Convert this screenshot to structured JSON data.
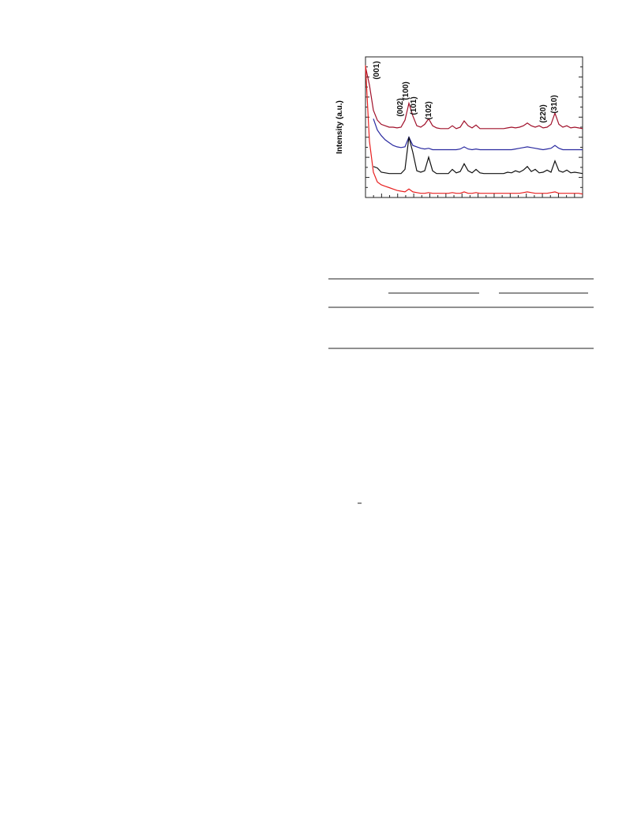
{
  "chart_data": {
    "type": "line",
    "y_label": "Intensity (a.u.)",
    "annotations": [
      "(001)",
      "(002)",
      "(100)",
      "(101)",
      "(102)",
      "(220)",
      "(310)"
    ],
    "categories": [
      null,
      null,
      null,
      null,
      null,
      null,
      null,
      null,
      null,
      null,
      null,
      null,
      null,
      null,
      null,
      null,
      null,
      null,
      null,
      null,
      null,
      null,
      null,
      null,
      null,
      null,
      null,
      null,
      null,
      null,
      null,
      null,
      null,
      null,
      null,
      null,
      null,
      null,
      null,
      null,
      null,
      null,
      null,
      null,
      null,
      null,
      null,
      null,
      null,
      null,
      null,
      null,
      null,
      null,
      null,
      null
    ],
    "ylim": [
      0,
      100
    ],
    "series": [
      {
        "color": "#a0102a",
        "values": [
          93,
          80,
          62,
          55,
          52,
          51,
          50,
          50,
          49.5,
          50,
          55,
          67,
          58,
          51,
          50,
          52,
          56,
          51,
          49.5,
          49,
          49,
          49,
          51,
          49,
          50,
          54.5,
          51,
          49.5,
          51.5,
          49,
          49,
          49,
          49,
          49,
          49,
          49,
          49.5,
          50,
          49.5,
          50,
          51,
          53,
          51,
          50,
          51,
          49.5,
          50,
          52,
          60,
          52,
          50,
          51,
          49.5,
          50,
          49.5,
          49
        ]
      },
      {
        "color": "#2a2aa0",
        "values": [
          null,
          null,
          56,
          48,
          44,
          41,
          39,
          37,
          36,
          35.5,
          36,
          43,
          37,
          36,
          35,
          34.5,
          35,
          34,
          34,
          34,
          34,
          34,
          34,
          34,
          34.5,
          36,
          34.5,
          34,
          34.5,
          34,
          34,
          34,
          34,
          34,
          34,
          34,
          34,
          34,
          34.5,
          35,
          35.5,
          36,
          35.5,
          35,
          34.5,
          34,
          34.5,
          35,
          37,
          35,
          34,
          34,
          34,
          34,
          34,
          34
        ]
      },
      {
        "color": "#111111",
        "values": [
          null,
          null,
          22,
          21,
          18,
          17.5,
          17,
          17,
          17,
          17,
          20,
          43,
          32,
          19,
          18,
          19,
          28.7,
          19,
          17,
          17,
          17,
          17,
          20,
          17.5,
          18.5,
          24,
          19,
          17.5,
          20,
          17.5,
          17,
          17,
          17,
          17,
          17,
          17,
          18,
          17.5,
          19,
          18,
          19.5,
          22,
          18.5,
          20,
          17.5,
          18,
          19.5,
          18,
          26,
          19,
          18,
          19.5,
          17.5,
          18,
          17.5,
          17
        ]
      },
      {
        "color": "#e82020",
        "values": [
          94,
          40,
          18,
          11,
          9,
          8,
          7,
          6,
          5,
          4.5,
          4,
          6,
          4,
          3.5,
          3,
          3,
          3.5,
          3,
          3,
          3,
          3,
          3,
          3.5,
          3,
          3,
          4,
          3,
          3,
          3.5,
          3,
          3,
          3,
          3,
          3,
          3,
          3,
          3,
          3,
          3,
          3,
          3.5,
          4,
          3.5,
          3,
          3,
          3,
          3,
          3.5,
          4,
          3,
          3,
          3,
          3,
          3,
          3,
          2.5
        ]
      }
    ]
  }
}
